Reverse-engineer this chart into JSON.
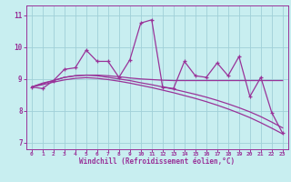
{
  "xlabel": "Windchill (Refroidissement éolien,°C)",
  "bg_color": "#c8eef0",
  "grid_color": "#a0d0d8",
  "line_color": "#993399",
  "x_values": [
    0,
    1,
    2,
    3,
    4,
    5,
    6,
    7,
    8,
    9,
    10,
    11,
    12,
    13,
    14,
    15,
    16,
    17,
    18,
    19,
    20,
    21,
    22,
    23
  ],
  "y_jagged": [
    8.75,
    8.7,
    8.95,
    9.3,
    9.35,
    9.9,
    9.55,
    9.55,
    9.05,
    9.6,
    10.75,
    10.85,
    8.75,
    8.7,
    9.55,
    9.1,
    9.05,
    9.5,
    9.1,
    9.7,
    8.45,
    9.05,
    7.95,
    7.3
  ],
  "y_flat": [
    8.75,
    8.87,
    8.95,
    9.05,
    9.1,
    9.12,
    9.12,
    9.1,
    9.07,
    9.03,
    9.0,
    8.98,
    8.96,
    8.95,
    8.95,
    8.95,
    8.95,
    8.95,
    8.95,
    8.95,
    8.95,
    8.95,
    8.95,
    8.95
  ],
  "y_smooth1": [
    8.75,
    8.85,
    8.95,
    9.05,
    9.1,
    9.12,
    9.1,
    9.05,
    9.0,
    8.95,
    8.88,
    8.82,
    8.75,
    8.68,
    8.6,
    8.52,
    8.43,
    8.33,
    8.22,
    8.1,
    7.97,
    7.82,
    7.65,
    7.47
  ],
  "y_smooth2": [
    8.75,
    8.82,
    8.9,
    8.97,
    9.02,
    9.04,
    9.02,
    8.98,
    8.93,
    8.87,
    8.8,
    8.73,
    8.65,
    8.57,
    8.48,
    8.39,
    8.29,
    8.18,
    8.06,
    7.93,
    7.79,
    7.63,
    7.46,
    7.28
  ],
  "ylim": [
    6.8,
    11.3
  ],
  "yticks": [
    7,
    8,
    9,
    10,
    11
  ],
  "xlim": [
    -0.5,
    23.5
  ]
}
